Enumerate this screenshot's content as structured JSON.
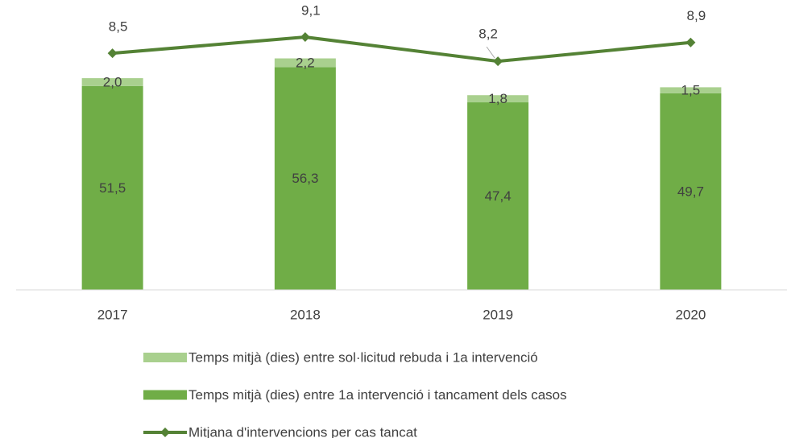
{
  "chart_data": {
    "type": "bar",
    "categories": [
      "2017",
      "2018",
      "2019",
      "2020"
    ],
    "series": [
      {
        "name": "Temps mitjà (dies) entre sol·licitud rebuda i 1a intervenció",
        "type": "bar",
        "color": "#a9d08e",
        "values": [
          2.0,
          2.2,
          1.8,
          1.5
        ],
        "value_labels": [
          "2,0",
          "2,2",
          "1,8",
          "1,5"
        ]
      },
      {
        "name": "Temps mitjà (dies) entre 1a intervenció i tancament dels casos",
        "type": "bar",
        "color": "#70ad47",
        "values": [
          51.5,
          56.3,
          47.4,
          49.7
        ],
        "value_labels": [
          "51,5",
          "56,3",
          "47,4",
          "49,7"
        ]
      },
      {
        "name": "Mitjana d'intervencions per cas tancat",
        "type": "line",
        "axis": "y2",
        "color": "#548235",
        "values": [
          8.5,
          9.1,
          8.2,
          8.9
        ],
        "value_labels": [
          "8,5",
          "9,1",
          "8,2",
          "8,9"
        ]
      }
    ],
    "stacked": true,
    "ylim": [
      0,
      70
    ],
    "y2lim": [
      -0.3,
      10
    ],
    "legend": "bottom"
  }
}
